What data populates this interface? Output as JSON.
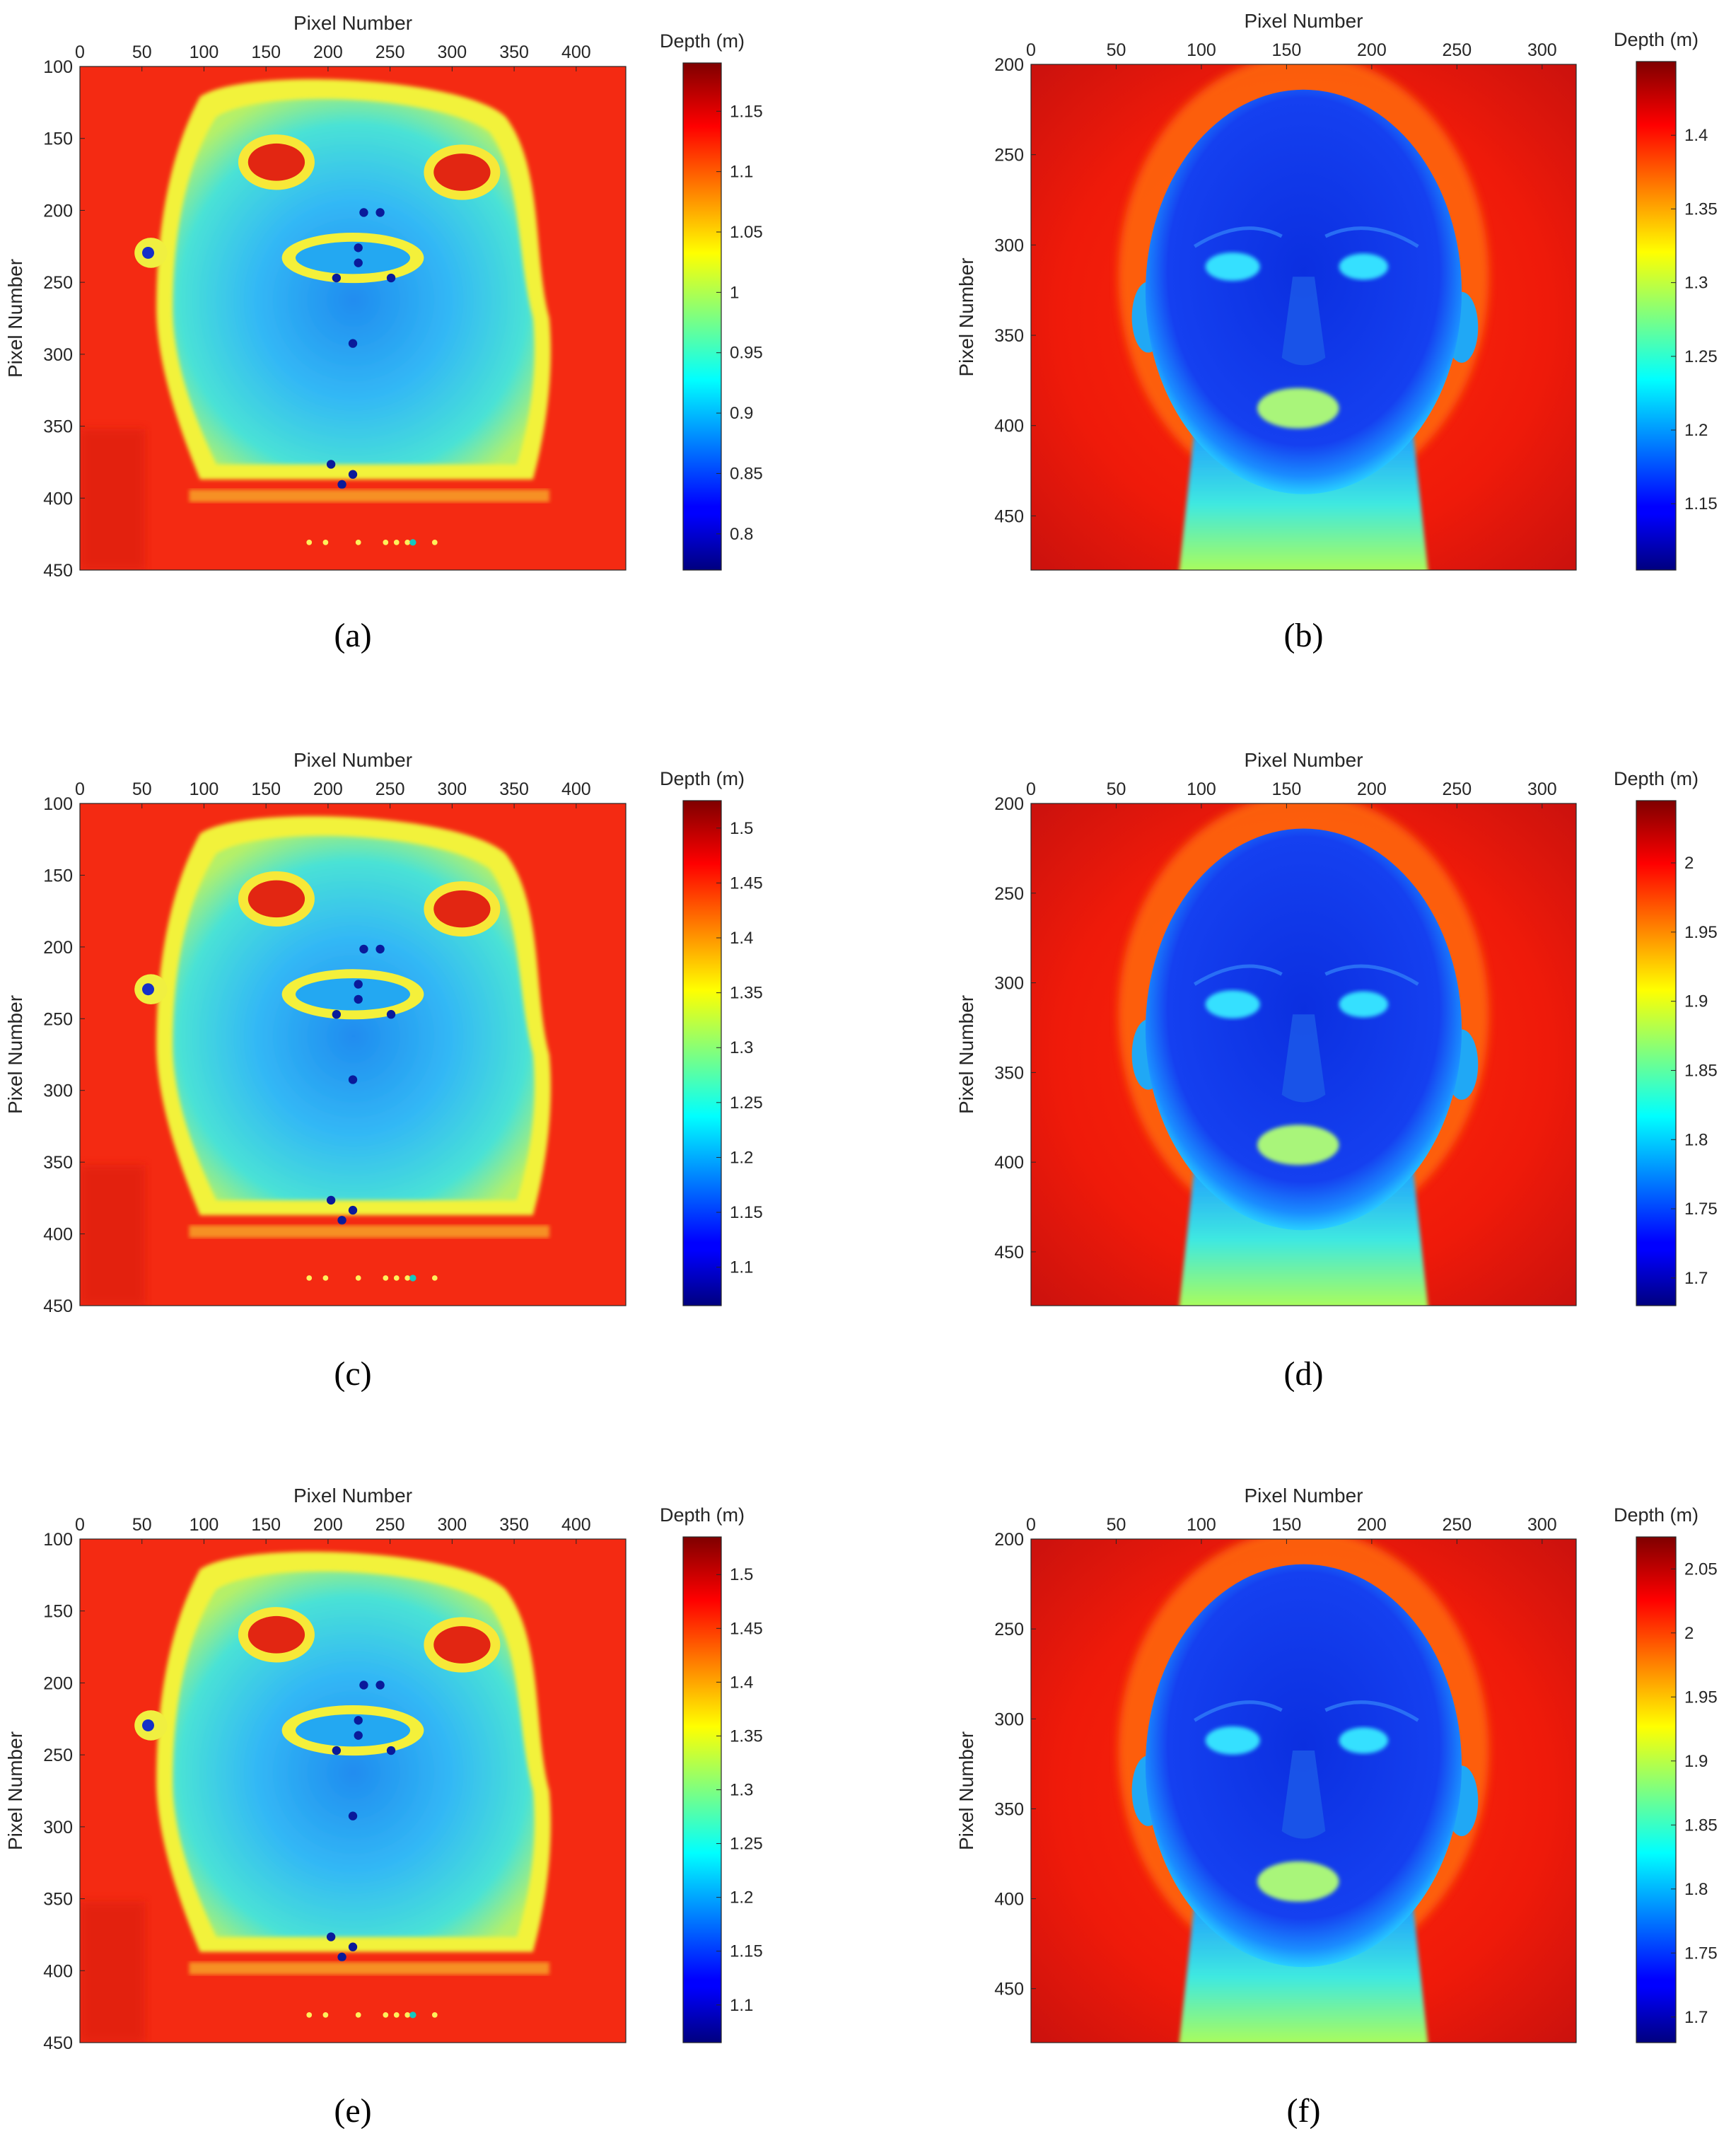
{
  "chart_data": [
    {
      "type": "heatmap",
      "caption": "(a)",
      "xlabel": "Pixel Number",
      "ylabel": "Pixel Number",
      "xticks": [
        0,
        50,
        100,
        150,
        200,
        250,
        300,
        350,
        400
      ],
      "xlim": [
        0,
        440
      ],
      "yticks": [
        100,
        150,
        200,
        250,
        300,
        350,
        400,
        450
      ],
      "ylim": [
        100,
        450
      ],
      "colorbar": {
        "title": "Depth (m)",
        "ticks": [
          "0.8",
          "0.85",
          "0.9",
          "0.95",
          "1",
          "1.05",
          "1.1",
          "1.15"
        ],
        "min": 0.77,
        "max": 1.19
      },
      "subject": "mask-fronto-parallel",
      "colormap": "jet"
    },
    {
      "type": "heatmap",
      "caption": "(b)",
      "xlabel": "Pixel Number",
      "ylabel": "Pixel Number",
      "xticks": [
        0,
        50,
        100,
        150,
        200,
        250,
        300
      ],
      "xlim": [
        0,
        320
      ],
      "yticks": [
        200,
        250,
        300,
        350,
        400,
        450
      ],
      "ylim": [
        200,
        480
      ],
      "colorbar": {
        "title": "Depth (m)",
        "ticks": [
          "1.15",
          "1.2",
          "1.25",
          "1.3",
          "1.35",
          "1.4"
        ],
        "min": 1.105,
        "max": 1.45
      },
      "subject": "head-frontal",
      "colormap": "jet"
    },
    {
      "type": "heatmap",
      "caption": "(c)",
      "xlabel": "Pixel Number",
      "ylabel": "Pixel Number",
      "xticks": [
        0,
        50,
        100,
        150,
        200,
        250,
        300,
        350,
        400
      ],
      "xlim": [
        0,
        440
      ],
      "yticks": [
        100,
        150,
        200,
        250,
        300,
        350,
        400,
        450
      ],
      "ylim": [
        100,
        450
      ],
      "colorbar": {
        "title": "Depth (m)",
        "ticks": [
          "1.1",
          "1.15",
          "1.2",
          "1.25",
          "1.3",
          "1.35",
          "1.4",
          "1.45",
          "1.5"
        ],
        "min": 1.065,
        "max": 1.525
      },
      "subject": "mask-fronto-parallel",
      "colormap": "jet"
    },
    {
      "type": "heatmap",
      "caption": "(d)",
      "xlabel": "Pixel Number",
      "ylabel": "Pixel Number",
      "xticks": [
        0,
        50,
        100,
        150,
        200,
        250,
        300
      ],
      "xlim": [
        0,
        320
      ],
      "yticks": [
        200,
        250,
        300,
        350,
        400,
        450
      ],
      "ylim": [
        200,
        480
      ],
      "colorbar": {
        "title": "Depth (m)",
        "ticks": [
          "1.7",
          "1.75",
          "1.8",
          "1.85",
          "1.9",
          "1.95",
          "2"
        ],
        "min": 1.68,
        "max": 2.045
      },
      "subject": "head-frontal",
      "colormap": "jet"
    },
    {
      "type": "heatmap",
      "caption": "(e)",
      "xlabel": "Pixel Number",
      "ylabel": "Pixel Number",
      "xticks": [
        0,
        50,
        100,
        150,
        200,
        250,
        300,
        350,
        400
      ],
      "xlim": [
        0,
        440
      ],
      "yticks": [
        100,
        150,
        200,
        250,
        300,
        350,
        400,
        450
      ],
      "ylim": [
        100,
        450
      ],
      "colorbar": {
        "title": "Depth (m)",
        "ticks": [
          "1.1",
          "1.15",
          "1.2",
          "1.25",
          "1.3",
          "1.35",
          "1.4",
          "1.45",
          "1.5"
        ],
        "min": 1.065,
        "max": 1.535
      },
      "subject": "mask-fronto-parallel",
      "colormap": "jet"
    },
    {
      "type": "heatmap",
      "caption": "(f)",
      "xlabel": "Pixel Number",
      "ylabel": "Pixel Number",
      "xticks": [
        0,
        50,
        100,
        150,
        200,
        250,
        300
      ],
      "xlim": [
        0,
        320
      ],
      "yticks": [
        200,
        250,
        300,
        350,
        400,
        450
      ],
      "ylim": [
        200,
        480
      ],
      "colorbar": {
        "title": "Depth (m)",
        "ticks": [
          "1.7",
          "1.75",
          "1.8",
          "1.85",
          "1.9",
          "1.95",
          "2",
          "2.05"
        ],
        "min": 1.68,
        "max": 2.075
      },
      "subject": "head-frontal",
      "colormap": "jet"
    }
  ]
}
